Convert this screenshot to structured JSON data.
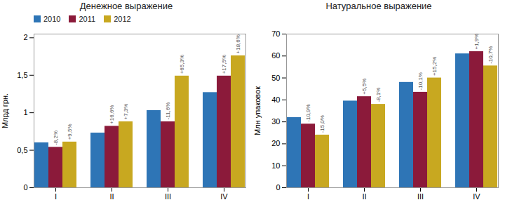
{
  "chart_data": [
    {
      "type": "bar",
      "title": "Денежное выражение",
      "ylabel": "Млрд грн.",
      "categories": [
        "I",
        "II",
        "III",
        "IV"
      ],
      "series": [
        {
          "name": "2010",
          "color": "#2E75B6",
          "values": [
            0.6,
            0.73,
            1.03,
            1.27
          ]
        },
        {
          "name": "2011",
          "color": "#8B1A3A",
          "values": [
            0.54,
            0.82,
            0.88,
            1.49
          ],
          "annotations": [
            "-8,2%",
            "+16,6%",
            "-11,6%",
            "+17,5%"
          ]
        },
        {
          "name": "2012",
          "color": "#C8A820",
          "values": [
            0.61,
            0.88,
            1.49,
            1.76
          ],
          "annotations": [
            "+9,5%",
            "+7,3%",
            "+65,3%",
            "+18,6%"
          ]
        }
      ],
      "ylim": [
        0,
        2.05
      ],
      "yticks": [
        0,
        {
          "value": 0.5,
          "label": "0,5"
        },
        1,
        {
          "value": 1.5,
          "label": "1,5"
        },
        2
      ],
      "grid": false,
      "legend": "upper left"
    },
    {
      "type": "bar",
      "title": "Натуральное выражение",
      "ylabel": "Млн упаковок",
      "categories": [
        "I",
        "II",
        "III",
        "IV"
      ],
      "series": [
        {
          "name": "2010",
          "color": "#2E75B6",
          "values": [
            32,
            39.5,
            48,
            61
          ]
        },
        {
          "name": "2011",
          "color": "#8B1A3A",
          "values": [
            29,
            41.5,
            43.5,
            62
          ],
          "annotations": [
            "-10,9%",
            "+5,5%",
            "-10,1%",
            "+1,9%"
          ]
        },
        {
          "name": "2012",
          "color": "#C8A820",
          "values": [
            24,
            38,
            50,
            55.5
          ],
          "annotations": [
            "-15,0%",
            "-8,1%",
            "+15,2%",
            "-10,7%"
          ]
        }
      ],
      "ylim": [
        0,
        70
      ],
      "yticks": [
        0,
        10,
        20,
        30,
        40,
        50,
        60,
        70
      ],
      "grid": false
    }
  ]
}
